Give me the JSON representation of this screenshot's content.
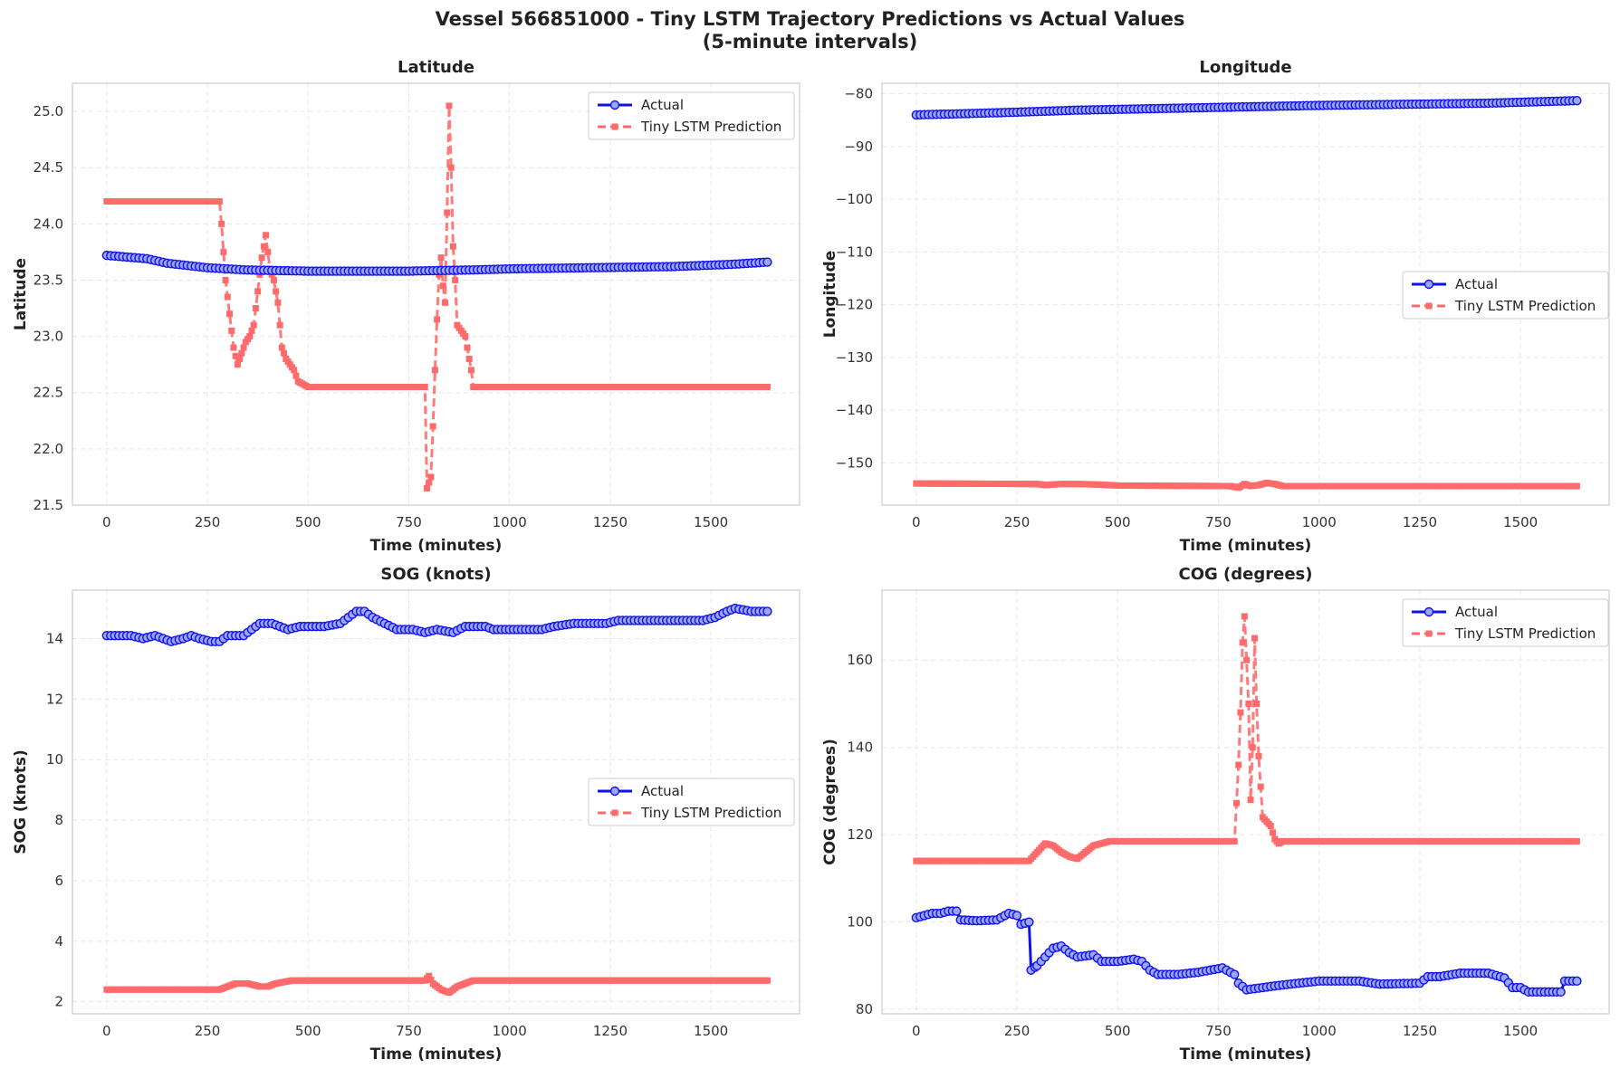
{
  "figure": {
    "title_line1": "Vessel 566851000 - Tiny LSTM Trajectory Predictions vs Actual Values",
    "title_line2": "(5-minute intervals)"
  },
  "colors": {
    "actual": "#1010ee",
    "actual_marker_fill": "#9aa6ff",
    "prediction": "#ff6b6b"
  },
  "chart_data": [
    {
      "type": "line",
      "title": "Latitude",
      "xlabel": "Time (minutes)",
      "ylabel": "Latitude",
      "xlim": [
        -85,
        1720
      ],
      "ylim": [
        21.5,
        25.25
      ],
      "xticks": [
        0,
        250,
        500,
        750,
        1000,
        1250,
        1500
      ],
      "yticks": [
        21.5,
        22.0,
        22.5,
        23.0,
        23.5,
        24.0,
        24.5,
        25.0
      ],
      "ytick_labels": [
        "21.5",
        "22.0",
        "22.5",
        "23.0",
        "23.5",
        "24.0",
        "24.5",
        "25.0"
      ],
      "legend": "top-right",
      "grid": true,
      "series": [
        {
          "name": "Actual",
          "points": [
            [
              0,
              23.72
            ],
            [
              100,
              23.69
            ],
            [
              150,
              23.65
            ],
            [
              250,
              23.61
            ],
            [
              350,
              23.59
            ],
            [
              500,
              23.58
            ],
            [
              750,
              23.58
            ],
            [
              900,
              23.59
            ],
            [
              1000,
              23.6
            ],
            [
              1200,
              23.61
            ],
            [
              1400,
              23.62
            ],
            [
              1550,
              23.64
            ],
            [
              1640,
              23.66
            ]
          ]
        },
        {
          "name": "Tiny LSTM Prediction",
          "points": [
            [
              0,
              24.2
            ],
            [
              280,
              24.2
            ],
            [
              285,
              24.0
            ],
            [
              295,
              23.5
            ],
            [
              305,
              23.2
            ],
            [
              315,
              22.9
            ],
            [
              325,
              22.75
            ],
            [
              335,
              22.85
            ],
            [
              345,
              22.95
            ],
            [
              355,
              23.0
            ],
            [
              365,
              23.1
            ],
            [
              375,
              23.4
            ],
            [
              385,
              23.7
            ],
            [
              395,
              23.9
            ],
            [
              405,
              23.6
            ],
            [
              415,
              23.5
            ],
            [
              425,
              23.3
            ],
            [
              435,
              22.9
            ],
            [
              445,
              22.8
            ],
            [
              455,
              22.75
            ],
            [
              465,
              22.7
            ],
            [
              475,
              22.6
            ],
            [
              485,
              22.58
            ],
            [
              500,
              22.55
            ],
            [
              790,
              22.55
            ],
            [
              795,
              21.65
            ],
            [
              805,
              21.75
            ],
            [
              810,
              22.2
            ],
            [
              815,
              22.7
            ],
            [
              820,
              23.15
            ],
            [
              825,
              23.55
            ],
            [
              830,
              23.7
            ],
            [
              835,
              23.45
            ],
            [
              840,
              23.3
            ],
            [
              845,
              24.1
            ],
            [
              850,
              25.05
            ],
            [
              855,
              24.5
            ],
            [
              860,
              23.8
            ],
            [
              865,
              23.5
            ],
            [
              870,
              23.1
            ],
            [
              880,
              23.05
            ],
            [
              890,
              23.0
            ],
            [
              900,
              22.8
            ],
            [
              905,
              22.7
            ],
            [
              910,
              22.55
            ],
            [
              1640,
              22.55
            ]
          ]
        }
      ]
    },
    {
      "type": "line",
      "title": "Longitude",
      "xlabel": "Time (minutes)",
      "ylabel": "Longitude",
      "xlim": [
        -85,
        1720
      ],
      "ylim": [
        -158,
        -78
      ],
      "xticks": [
        0,
        250,
        500,
        750,
        1000,
        1250,
        1500
      ],
      "yticks": [
        -150,
        -140,
        -130,
        -120,
        -110,
        -100,
        -90,
        -80
      ],
      "ytick_labels": [
        "−150",
        "−140",
        "−130",
        "−120",
        "−110",
        "−100",
        "−90",
        "−80"
      ],
      "legend": "center-right",
      "grid": true,
      "series": [
        {
          "name": "Actual",
          "points": [
            [
              0,
              -84.0
            ],
            [
              200,
              -83.6
            ],
            [
              400,
              -83.1
            ],
            [
              600,
              -82.8
            ],
            [
              800,
              -82.5
            ],
            [
              1000,
              -82.2
            ],
            [
              1200,
              -82.0
            ],
            [
              1400,
              -81.8
            ],
            [
              1640,
              -81.3
            ]
          ]
        },
        {
          "name": "Tiny LSTM Prediction",
          "points": [
            [
              0,
              -153.9
            ],
            [
              300,
              -154.0
            ],
            [
              320,
              -154.2
            ],
            [
              360,
              -154.0
            ],
            [
              400,
              -154.0
            ],
            [
              450,
              -154.1
            ],
            [
              500,
              -154.3
            ],
            [
              780,
              -154.4
            ],
            [
              800,
              -154.7
            ],
            [
              815,
              -154.0
            ],
            [
              830,
              -154.4
            ],
            [
              850,
              -154.2
            ],
            [
              870,
              -153.8
            ],
            [
              890,
              -154.0
            ],
            [
              910,
              -154.4
            ],
            [
              1640,
              -154.4
            ]
          ]
        }
      ]
    },
    {
      "type": "line",
      "title": "SOG (knots)",
      "xlabel": "Time (minutes)",
      "ylabel": "SOG (knots)",
      "xlim": [
        -85,
        1720
      ],
      "ylim": [
        1.6,
        15.6
      ],
      "xticks": [
        0,
        250,
        500,
        750,
        1000,
        1250,
        1500
      ],
      "yticks": [
        2,
        4,
        6,
        8,
        10,
        12,
        14
      ],
      "ytick_labels": [
        "2",
        "4",
        "6",
        "8",
        "10",
        "12",
        "14"
      ],
      "legend": "center-right",
      "grid": true,
      "series": [
        {
          "name": "Actual",
          "points": [
            [
              0,
              14.1
            ],
            [
              60,
              14.1
            ],
            [
              90,
              14.0
            ],
            [
              120,
              14.1
            ],
            [
              140,
              14.0
            ],
            [
              160,
              13.9
            ],
            [
              190,
              14.0
            ],
            [
              210,
              14.1
            ],
            [
              230,
              14.0
            ],
            [
              260,
              13.9
            ],
            [
              280,
              13.9
            ],
            [
              300,
              14.1
            ],
            [
              340,
              14.1
            ],
            [
              360,
              14.3
            ],
            [
              380,
              14.5
            ],
            [
              410,
              14.5
            ],
            [
              430,
              14.4
            ],
            [
              450,
              14.3
            ],
            [
              480,
              14.4
            ],
            [
              540,
              14.4
            ],
            [
              580,
              14.5
            ],
            [
              600,
              14.7
            ],
            [
              620,
              14.9
            ],
            [
              640,
              14.9
            ],
            [
              660,
              14.7
            ],
            [
              690,
              14.5
            ],
            [
              720,
              14.3
            ],
            [
              760,
              14.3
            ],
            [
              790,
              14.2
            ],
            [
              820,
              14.3
            ],
            [
              860,
              14.2
            ],
            [
              890,
              14.4
            ],
            [
              940,
              14.4
            ],
            [
              960,
              14.3
            ],
            [
              1080,
              14.3
            ],
            [
              1110,
              14.4
            ],
            [
              1160,
              14.5
            ],
            [
              1240,
              14.5
            ],
            [
              1270,
              14.6
            ],
            [
              1390,
              14.6
            ],
            [
              1480,
              14.6
            ],
            [
              1510,
              14.7
            ],
            [
              1540,
              14.9
            ],
            [
              1560,
              15.0
            ],
            [
              1600,
              14.9
            ],
            [
              1640,
              14.9
            ]
          ]
        },
        {
          "name": "Tiny LSTM Prediction",
          "points": [
            [
              0,
              2.4
            ],
            [
              280,
              2.4
            ],
            [
              300,
              2.5
            ],
            [
              320,
              2.6
            ],
            [
              350,
              2.6
            ],
            [
              380,
              2.5
            ],
            [
              400,
              2.5
            ],
            [
              420,
              2.6
            ],
            [
              460,
              2.7
            ],
            [
              790,
              2.7
            ],
            [
              800,
              2.85
            ],
            [
              810,
              2.6
            ],
            [
              830,
              2.4
            ],
            [
              850,
              2.3
            ],
            [
              870,
              2.5
            ],
            [
              890,
              2.6
            ],
            [
              910,
              2.7
            ],
            [
              1640,
              2.7
            ]
          ]
        }
      ]
    },
    {
      "type": "line",
      "title": "COG (degrees)",
      "xlabel": "Time (minutes)",
      "ylabel": "COG (degrees)",
      "xlim": [
        -85,
        1720
      ],
      "ylim": [
        79,
        176
      ],
      "xticks": [
        0,
        250,
        500,
        750,
        1000,
        1250,
        1500
      ],
      "yticks": [
        80,
        100,
        120,
        140,
        160
      ],
      "ytick_labels": [
        "80",
        "100",
        "120",
        "140",
        "160"
      ],
      "legend": "top-right",
      "grid": true,
      "series": [
        {
          "name": "Actual",
          "points": [
            [
              0,
              101
            ],
            [
              20,
              101.5
            ],
            [
              40,
              102
            ],
            [
              60,
              102
            ],
            [
              80,
              102.5
            ],
            [
              100,
              102.5
            ],
            [
              110,
              100.5
            ],
            [
              150,
              100.3
            ],
            [
              200,
              100.5
            ],
            [
              230,
              102
            ],
            [
              250,
              101.5
            ],
            [
              260,
              99.5
            ],
            [
              280,
              100
            ],
            [
              285,
              89
            ],
            [
              300,
              90
            ],
            [
              320,
              92
            ],
            [
              340,
              94
            ],
            [
              360,
              94.5
            ],
            [
              380,
              93
            ],
            [
              400,
              92
            ],
            [
              440,
              92.5
            ],
            [
              460,
              91
            ],
            [
              500,
              91
            ],
            [
              540,
              91.5
            ],
            [
              560,
              91
            ],
            [
              580,
              89
            ],
            [
              600,
              88
            ],
            [
              650,
              88
            ],
            [
              700,
              88.5
            ],
            [
              760,
              89.5
            ],
            [
              790,
              88
            ],
            [
              800,
              86
            ],
            [
              820,
              84.5
            ],
            [
              860,
              85
            ],
            [
              900,
              85.5
            ],
            [
              1000,
              86.5
            ],
            [
              1100,
              86.5
            ],
            [
              1150,
              85.8
            ],
            [
              1250,
              86
            ],
            [
              1270,
              87.5
            ],
            [
              1300,
              87.5
            ],
            [
              1350,
              88.3
            ],
            [
              1420,
              88.3
            ],
            [
              1460,
              87.2
            ],
            [
              1480,
              85
            ],
            [
              1500,
              85
            ],
            [
              1520,
              84
            ],
            [
              1560,
              84
            ],
            [
              1600,
              84
            ],
            [
              1610,
              86.5
            ],
            [
              1640,
              86.5
            ]
          ]
        },
        {
          "name": "Tiny LSTM Prediction",
          "points": [
            [
              0,
              114
            ],
            [
              280,
              114
            ],
            [
              300,
              116
            ],
            [
              320,
              118
            ],
            [
              340,
              117.5
            ],
            [
              360,
              116
            ],
            [
              380,
              115
            ],
            [
              400,
              114.5
            ],
            [
              420,
              116
            ],
            [
              440,
              117.5
            ],
            [
              460,
              118
            ],
            [
              480,
              118.5
            ],
            [
              790,
              118.5
            ],
            [
              800,
              136
            ],
            [
              805,
              148
            ],
            [
              810,
              164
            ],
            [
              815,
              170
            ],
            [
              820,
              160
            ],
            [
              825,
              150
            ],
            [
              830,
              128
            ],
            [
              835,
              140
            ],
            [
              840,
              165
            ],
            [
              845,
              150
            ],
            [
              850,
              138
            ],
            [
              855,
              131
            ],
            [
              860,
              124
            ],
            [
              870,
              123
            ],
            [
              880,
              122
            ],
            [
              890,
              119
            ],
            [
              900,
              118
            ],
            [
              910,
              118.5
            ],
            [
              1640,
              118.5
            ]
          ]
        }
      ]
    }
  ]
}
